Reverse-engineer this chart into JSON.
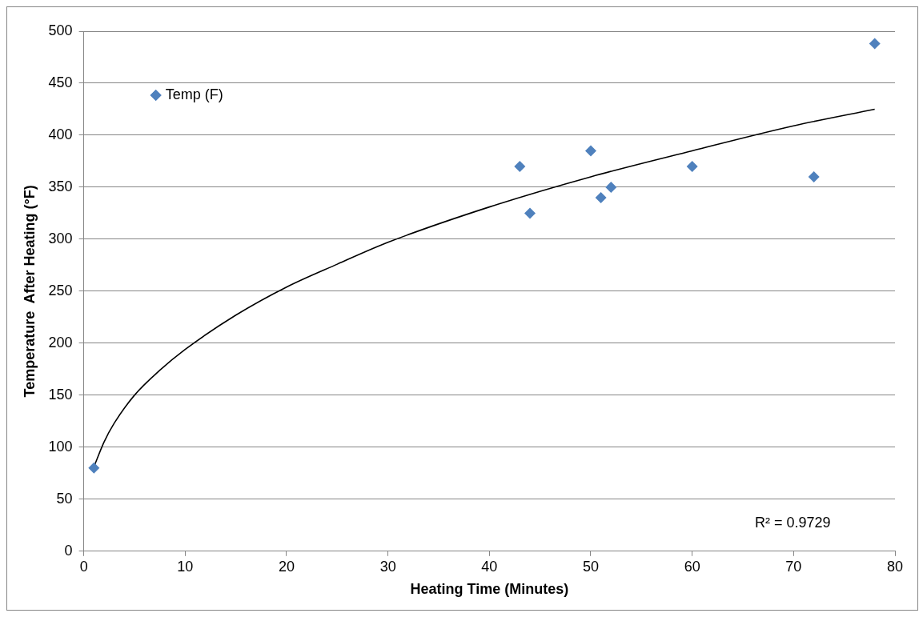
{
  "chart_data": {
    "type": "scatter",
    "xlabel": "Heating Time (Minutes)",
    "ylabel": "Temperature  After Heating (°F)",
    "xlim": [
      0,
      80
    ],
    "xticks": [
      0,
      10,
      20,
      30,
      40,
      50,
      60,
      70,
      80
    ],
    "ylim": [
      0,
      500
    ],
    "yticks": [
      0,
      50,
      100,
      150,
      200,
      250,
      300,
      350,
      400,
      450,
      500
    ],
    "grid": "y",
    "legend": "top left",
    "marker": "diamond",
    "series": [
      {
        "name": "Temp (F)",
        "color": "#4f81bd",
        "x": [
          1,
          43,
          44,
          50,
          51,
          52,
          60,
          72,
          78
        ],
        "values": [
          80,
          370,
          325,
          385,
          340,
          350,
          370,
          360,
          488
        ]
      },
      {
        "type": "line",
        "color": "#000000",
        "marker": "none",
        "x": [
          1,
          2,
          3,
          5,
          7.5,
          10,
          15,
          20,
          25,
          30,
          40,
          50,
          60,
          70,
          78
        ],
        "values": [
          81,
          105,
          123,
          150,
          174,
          194,
          227,
          254,
          276,
          297,
          331,
          360,
          385,
          409,
          425
        ]
      }
    ],
    "annotations": [
      "R² = 0.9729"
    ]
  }
}
